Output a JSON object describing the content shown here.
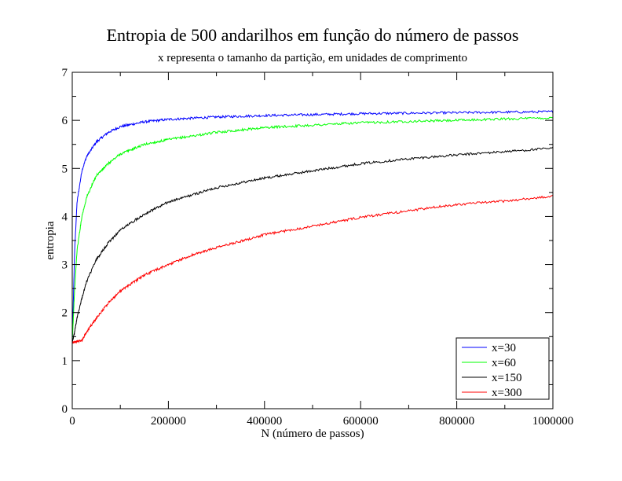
{
  "chart_data": {
    "type": "line",
    "title": "Entropia de 500 andarilhos em função do número de passos",
    "subtitle": "x representa o tamanho da partição, em unidades de comprimento",
    "xlabel": "N (número de passos)",
    "ylabel": "entropia",
    "xlim": [
      0,
      1000000
    ],
    "ylim": [
      0,
      7
    ],
    "xticks": [
      "0",
      "200000",
      "400000",
      "600000",
      "800000",
      "1000000"
    ],
    "yticks": [
      "0",
      "1",
      "2",
      "3",
      "4",
      "5",
      "6",
      "7"
    ],
    "grid": false,
    "legend_position": "bottom-right",
    "series": [
      {
        "name": "x=30",
        "color": "#0000ff",
        "points": [
          [
            0,
            1.38
          ],
          [
            5000,
            3.3
          ],
          [
            10000,
            4.3
          ],
          [
            20000,
            4.95
          ],
          [
            30000,
            5.25
          ],
          [
            50000,
            5.55
          ],
          [
            75000,
            5.75
          ],
          [
            100000,
            5.87
          ],
          [
            150000,
            5.97
          ],
          [
            200000,
            6.02
          ],
          [
            300000,
            6.07
          ],
          [
            400000,
            6.1
          ],
          [
            500000,
            6.12
          ],
          [
            600000,
            6.14
          ],
          [
            700000,
            6.15
          ],
          [
            800000,
            6.16
          ],
          [
            900000,
            6.17
          ],
          [
            1000000,
            6.18
          ]
        ]
      },
      {
        "name": "x=60",
        "color": "#00ff00",
        "points": [
          [
            0,
            1.38
          ],
          [
            5000,
            2.5
          ],
          [
            10000,
            3.3
          ],
          [
            20000,
            4.0
          ],
          [
            30000,
            4.4
          ],
          [
            50000,
            4.85
          ],
          [
            75000,
            5.1
          ],
          [
            100000,
            5.3
          ],
          [
            150000,
            5.5
          ],
          [
            200000,
            5.6
          ],
          [
            300000,
            5.75
          ],
          [
            400000,
            5.85
          ],
          [
            500000,
            5.9
          ],
          [
            600000,
            5.95
          ],
          [
            700000,
            5.98
          ],
          [
            800000,
            6.0
          ],
          [
            900000,
            6.03
          ],
          [
            1000000,
            6.05
          ]
        ]
      },
      {
        "name": "x=150",
        "color": "#000000",
        "points": [
          [
            0,
            1.38
          ],
          [
            5000,
            1.6
          ],
          [
            10000,
            1.9
          ],
          [
            20000,
            2.3
          ],
          [
            30000,
            2.65
          ],
          [
            50000,
            3.1
          ],
          [
            75000,
            3.45
          ],
          [
            100000,
            3.72
          ],
          [
            150000,
            4.05
          ],
          [
            200000,
            4.3
          ],
          [
            250000,
            4.45
          ],
          [
            300000,
            4.6
          ],
          [
            400000,
            4.8
          ],
          [
            500000,
            4.95
          ],
          [
            600000,
            5.1
          ],
          [
            700000,
            5.2
          ],
          [
            800000,
            5.28
          ],
          [
            900000,
            5.35
          ],
          [
            1000000,
            5.42
          ]
        ]
      },
      {
        "name": "x=300",
        "color": "#ff0000",
        "points": [
          [
            0,
            1.38
          ],
          [
            20000,
            1.42
          ],
          [
            30000,
            1.6
          ],
          [
            50000,
            1.88
          ],
          [
            75000,
            2.2
          ],
          [
            100000,
            2.45
          ],
          [
            150000,
            2.78
          ],
          [
            200000,
            3.0
          ],
          [
            250000,
            3.2
          ],
          [
            300000,
            3.35
          ],
          [
            400000,
            3.62
          ],
          [
            500000,
            3.8
          ],
          [
            600000,
            3.98
          ],
          [
            700000,
            4.12
          ],
          [
            800000,
            4.25
          ],
          [
            900000,
            4.32
          ],
          [
            1000000,
            4.42
          ]
        ]
      }
    ]
  }
}
